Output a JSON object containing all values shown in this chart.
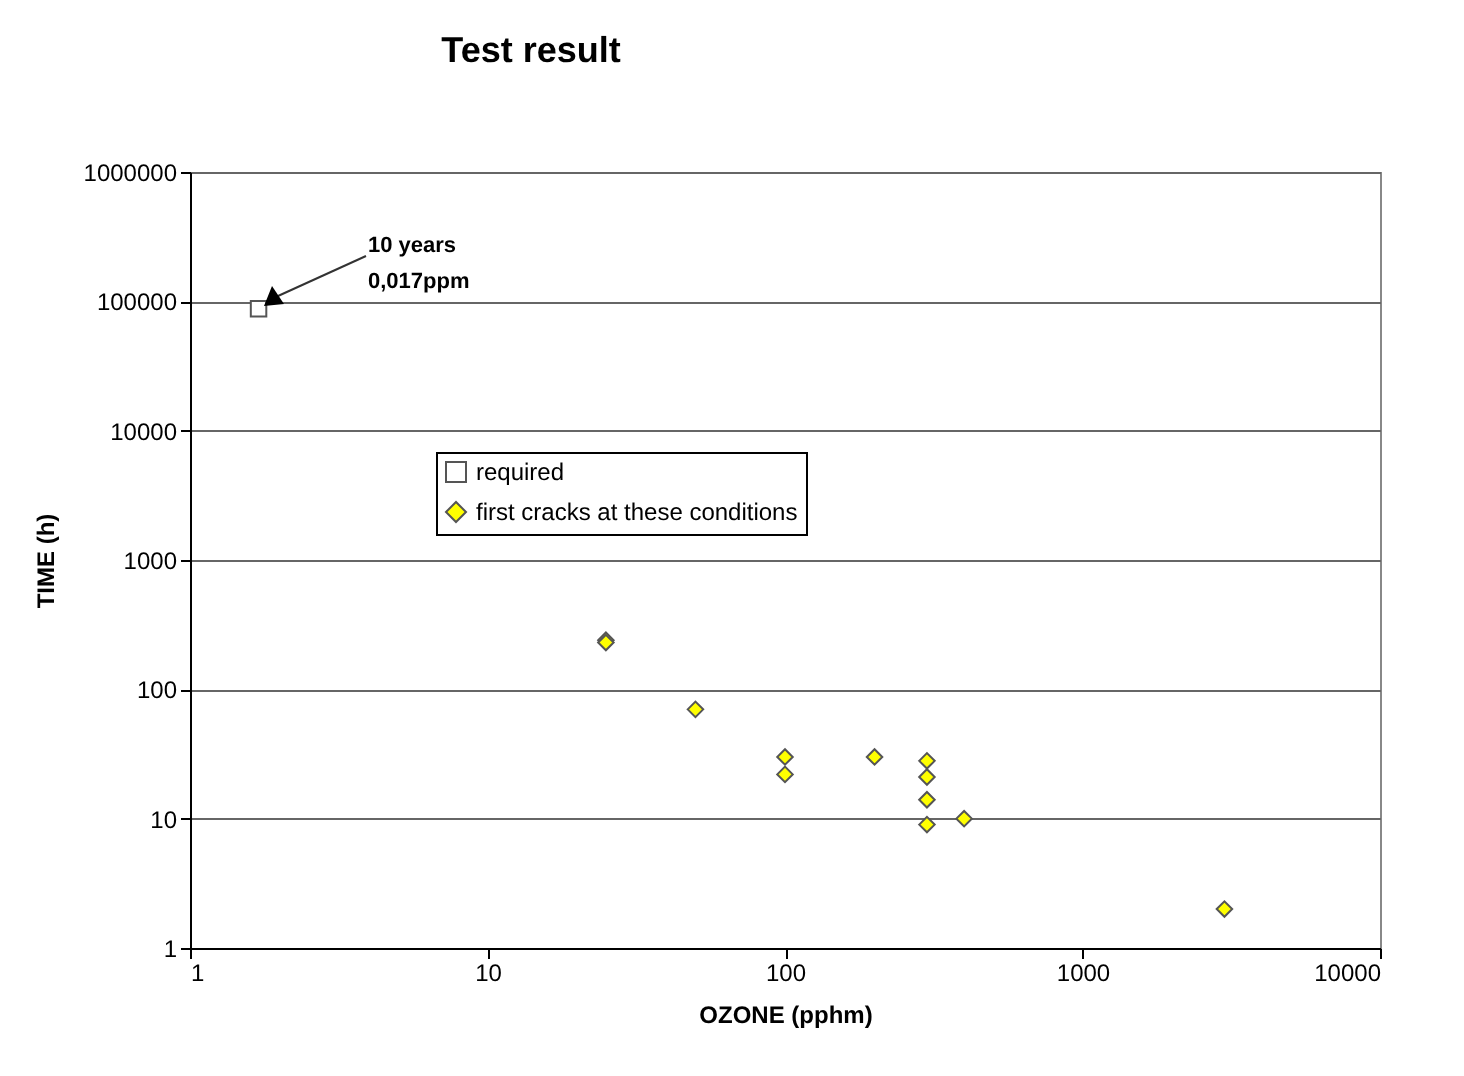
{
  "chart_data": {
    "type": "scatter",
    "title": "Test result",
    "xlabel": "OZONE (pphm)",
    "ylabel": "TIME (h)",
    "log": "xy",
    "grid": "y",
    "legend": "top left",
    "xlim": [
      1,
      10000
    ],
    "xticks": [
      1,
      10,
      100,
      1000,
      10000
    ],
    "ylim": [
      1,
      1000000
    ],
    "yticks": [
      1,
      10,
      100,
      1000,
      10000,
      100000,
      1000000
    ],
    "annotations": [
      "10 years\n0,017ppm"
    ],
    "series": [
      {
        "name": "required",
        "color": "#ffffff",
        "marker": "square",
        "x": [
          1.7
        ],
        "values": [
          87600
        ]
      },
      {
        "name": "first cracks at these conditions",
        "color": "#ffff00",
        "marker": "diamond",
        "x": [
          25,
          25,
          50,
          100,
          100,
          200,
          300,
          300,
          300,
          300,
          400,
          3000
        ],
        "values": [
          240,
          230,
          70,
          30,
          22,
          30,
          28,
          21,
          14,
          9,
          10,
          2
        ]
      }
    ]
  }
}
